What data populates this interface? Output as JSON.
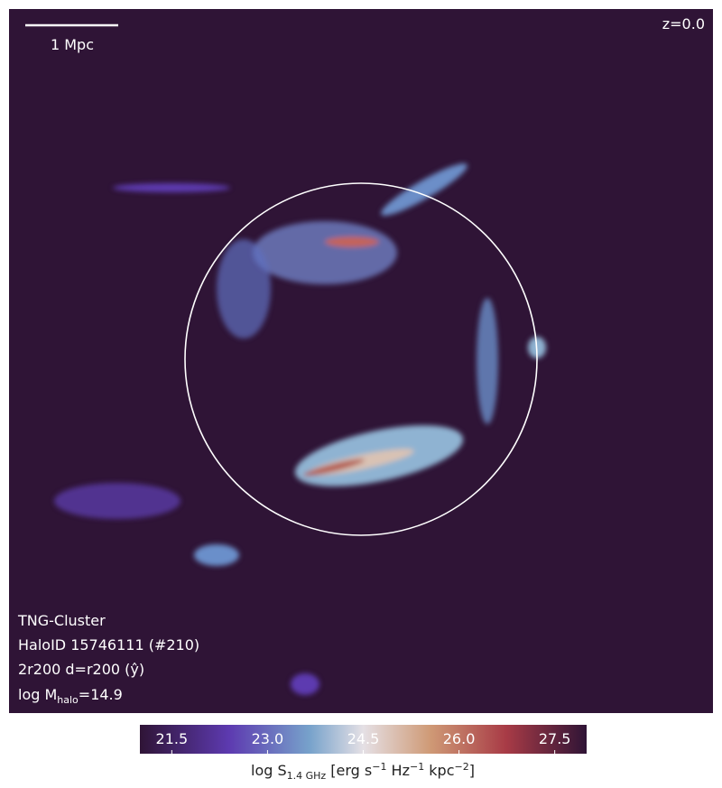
{
  "panel": {
    "redshift": "z=0.0",
    "scale_bar": "1 Mpc",
    "info": {
      "simulation": "TNG-Cluster",
      "halo": "HaloID 15746111 (#210)",
      "projection": "2r200 d=r200 (ŷ)",
      "mass": {
        "prefix": "log M",
        "sub": "halo",
        "suffix": "=14.9"
      }
    }
  },
  "colorbar": {
    "clim": [
      21,
      28
    ],
    "ticks": [
      21.5,
      {
        "value": 23,
        "label": "23.0"
      },
      24.5,
      {
        "value": 26,
        "label": "26.0"
      },
      27.5
    ],
    "label": {
      "a": "log S",
      "sub": "1.4 GHz",
      "b": " [erg s",
      "sup1": "−1",
      "c": " Hz",
      "sup2": "−1",
      "d": " kpc",
      "sup3": "−2",
      "e": "]"
    }
  }
}
